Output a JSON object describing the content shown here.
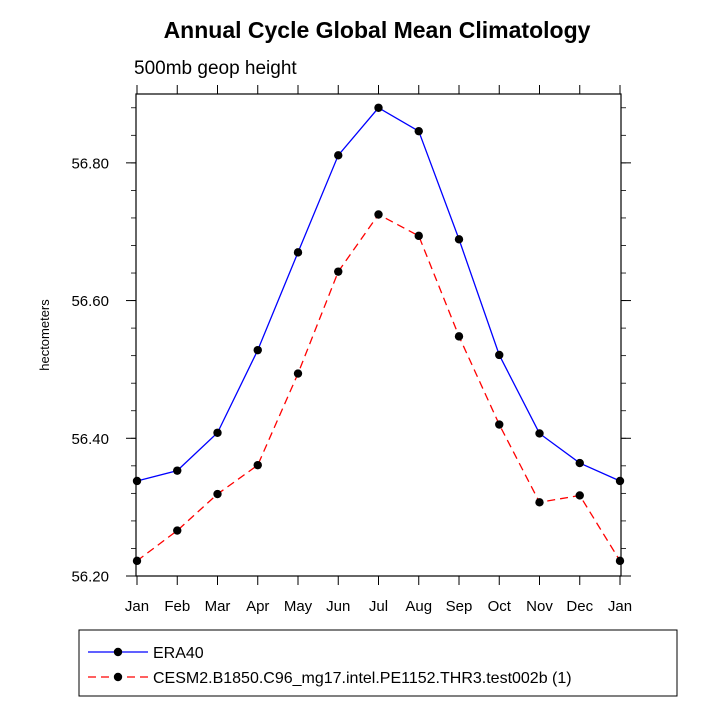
{
  "chart_data": {
    "type": "line",
    "title": "Annual Cycle Global Mean Climatology",
    "subtitle": "500mb geop height",
    "xlabel": "",
    "ylabel": "hectometers",
    "categories": [
      "Jan",
      "Feb",
      "Mar",
      "Apr",
      "May",
      "Jun",
      "Jul",
      "Aug",
      "Sep",
      "Oct",
      "Nov",
      "Dec",
      "Jan"
    ],
    "ylim": [
      56.2,
      56.9
    ],
    "yticks": [
      "56.20",
      "56.40",
      "56.60",
      "56.80"
    ],
    "series": [
      {
        "name": "ERA40",
        "color": "#0000ff",
        "dash": "solid",
        "values": [
          56.338,
          56.353,
          56.408,
          56.528,
          56.67,
          56.811,
          56.88,
          56.846,
          56.689,
          56.521,
          56.407,
          56.364,
          56.338
        ]
      },
      {
        "name": "CESM2.B1850.C96_mg17.intel.PE1152.THR3.test002b (1)",
        "color": "#ff0000",
        "dash": "dashed",
        "values": [
          56.222,
          56.266,
          56.319,
          56.361,
          56.494,
          56.642,
          56.725,
          56.694,
          56.548,
          56.42,
          56.307,
          56.317,
          56.222
        ]
      }
    ],
    "legend_position": "bottom"
  }
}
